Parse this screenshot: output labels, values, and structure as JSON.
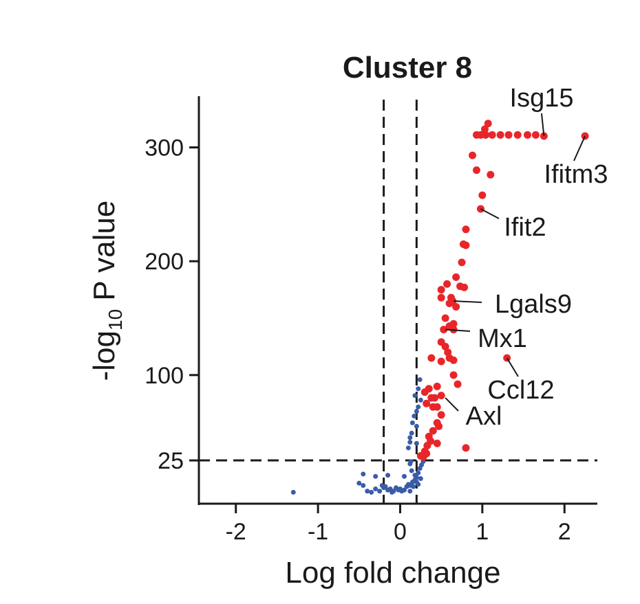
{
  "chart_data": {
    "type": "scatter",
    "title": "Cluster 8",
    "xlabel": "Log fold change",
    "ylabel_prefix": "-log",
    "ylabel_sub": "10",
    "ylabel_suffix": " P value",
    "xlim": [
      -2.45,
      2.4
    ],
    "ylim": [
      -13,
      345
    ],
    "x_ticks": [
      -2,
      -1,
      0,
      1,
      2
    ],
    "x_tick_labels": [
      "-2",
      "-1",
      "0",
      "1",
      "2"
    ],
    "y_ticks": [
      25,
      100,
      200,
      300
    ],
    "y_tick_labels": [
      "25",
      "100",
      "200",
      "300"
    ],
    "thresholds": {
      "x": [
        -0.2,
        0.2
      ],
      "y": 25
    },
    "colors": {
      "significant": "#e8262a",
      "not_significant": "#3a5ca8",
      "axis": "#1a1a1a"
    },
    "series": [
      {
        "name": "significant",
        "points": [
          [
            1.07,
            321
          ],
          [
            1.03,
            316
          ],
          [
            0.93,
            311
          ],
          [
            0.98,
            311
          ],
          [
            1.04,
            311
          ],
          [
            1.12,
            311
          ],
          [
            1.22,
            311
          ],
          [
            1.32,
            311
          ],
          [
            1.43,
            311
          ],
          [
            1.55,
            311
          ],
          [
            1.65,
            311
          ],
          [
            1.75,
            310
          ],
          [
            2.25,
            310
          ],
          [
            0.88,
            293
          ],
          [
            0.93,
            280
          ],
          [
            1.1,
            276
          ],
          [
            1.0,
            258
          ],
          [
            0.98,
            246
          ],
          [
            0.8,
            228
          ],
          [
            0.77,
            215
          ],
          [
            0.8,
            214
          ],
          [
            0.75,
            199
          ],
          [
            0.68,
            186
          ],
          [
            0.57,
            180
          ],
          [
            0.73,
            178
          ],
          [
            0.78,
            177
          ],
          [
            0.5,
            175
          ],
          [
            0.5,
            168
          ],
          [
            0.62,
            168
          ],
          [
            0.64,
            165
          ],
          [
            0.68,
            160
          ],
          [
            0.6,
            163
          ],
          [
            0.55,
            150
          ],
          [
            0.65,
            145
          ],
          [
            0.6,
            143
          ],
          [
            0.65,
            140
          ],
          [
            0.53,
            140
          ],
          [
            0.5,
            129
          ],
          [
            0.55,
            125
          ],
          [
            0.58,
            120
          ],
          [
            0.6,
            115
          ],
          [
            0.65,
            113
          ],
          [
            0.38,
            115
          ],
          [
            0.5,
            112
          ],
          [
            1.3,
            115
          ],
          [
            0.65,
            100
          ],
          [
            0.7,
            92
          ],
          [
            0.45,
            90
          ],
          [
            0.35,
            88
          ],
          [
            0.3,
            85
          ],
          [
            0.38,
            80
          ],
          [
            0.42,
            80
          ],
          [
            0.5,
            82
          ],
          [
            0.32,
            75
          ],
          [
            0.4,
            72
          ],
          [
            0.45,
            72
          ],
          [
            0.5,
            65
          ],
          [
            0.45,
            58
          ],
          [
            0.47,
            55
          ],
          [
            0.4,
            51
          ],
          [
            0.35,
            46
          ],
          [
            0.37,
            42
          ],
          [
            0.45,
            40
          ],
          [
            0.33,
            38
          ],
          [
            0.3,
            33
          ],
          [
            0.32,
            31
          ],
          [
            0.28,
            28
          ],
          [
            0.25,
            29
          ],
          [
            0.8,
            36
          ]
        ]
      },
      {
        "name": "not_significant",
        "points": [
          [
            -1.3,
            -3
          ],
          [
            -0.5,
            5
          ],
          [
            -0.45,
            3
          ],
          [
            -0.4,
            -2
          ],
          [
            -0.35,
            -3
          ],
          [
            -0.3,
            0
          ],
          [
            -0.25,
            -2
          ],
          [
            -0.22,
            3
          ],
          [
            -0.2,
            1
          ],
          [
            -0.18,
            2
          ],
          [
            -0.15,
            -1
          ],
          [
            -0.12,
            0
          ],
          [
            -0.1,
            -3
          ],
          [
            -0.08,
            -2
          ],
          [
            -0.05,
            1
          ],
          [
            -0.02,
            -1
          ],
          [
            0.0,
            0
          ],
          [
            0.02,
            -2
          ],
          [
            0.05,
            -1
          ],
          [
            0.08,
            2
          ],
          [
            0.1,
            4
          ],
          [
            0.12,
            3
          ],
          [
            0.15,
            6
          ],
          [
            0.18,
            8
          ],
          [
            0.2,
            10
          ],
          [
            0.22,
            14
          ],
          [
            0.24,
            18
          ],
          [
            0.26,
            21
          ],
          [
            0.28,
            24
          ],
          [
            0.2,
            6
          ],
          [
            0.16,
            2
          ],
          [
            0.12,
            -2
          ],
          [
            0.18,
            12
          ],
          [
            0.14,
            16
          ],
          [
            0.12,
            22
          ],
          [
            0.13,
            24
          ],
          [
            0.22,
            4
          ],
          [
            0.25,
            9
          ],
          [
            0.1,
            36
          ],
          [
            0.12,
            45
          ],
          [
            0.15,
            58
          ],
          [
            0.17,
            64
          ],
          [
            0.2,
            68
          ],
          [
            0.22,
            72
          ],
          [
            0.25,
            78
          ],
          [
            0.18,
            82
          ],
          [
            0.22,
            88
          ],
          [
            0.24,
            96
          ],
          [
            0.2,
            55
          ],
          [
            0.14,
            49
          ],
          [
            0.12,
            41
          ],
          [
            0.2,
            40
          ],
          [
            -0.45,
            13
          ],
          [
            -0.3,
            11
          ],
          [
            0.05,
            11
          ],
          [
            -0.15,
            12
          ]
        ]
      }
    ],
    "annotations": [
      {
        "label": "Isg15",
        "x": 1.75,
        "y": 310
      },
      {
        "label": "Ifitm3",
        "x": 2.25,
        "y": 310
      },
      {
        "label": "Ifit2",
        "x": 0.98,
        "y": 246
      },
      {
        "label": "Lgals9",
        "x": 0.65,
        "y": 165
      },
      {
        "label": "Mx1",
        "x": 0.55,
        "y": 140
      },
      {
        "label": "Ccl12",
        "x": 1.3,
        "y": 115
      },
      {
        "label": "Axl",
        "x": 0.55,
        "y": 80
      }
    ]
  }
}
